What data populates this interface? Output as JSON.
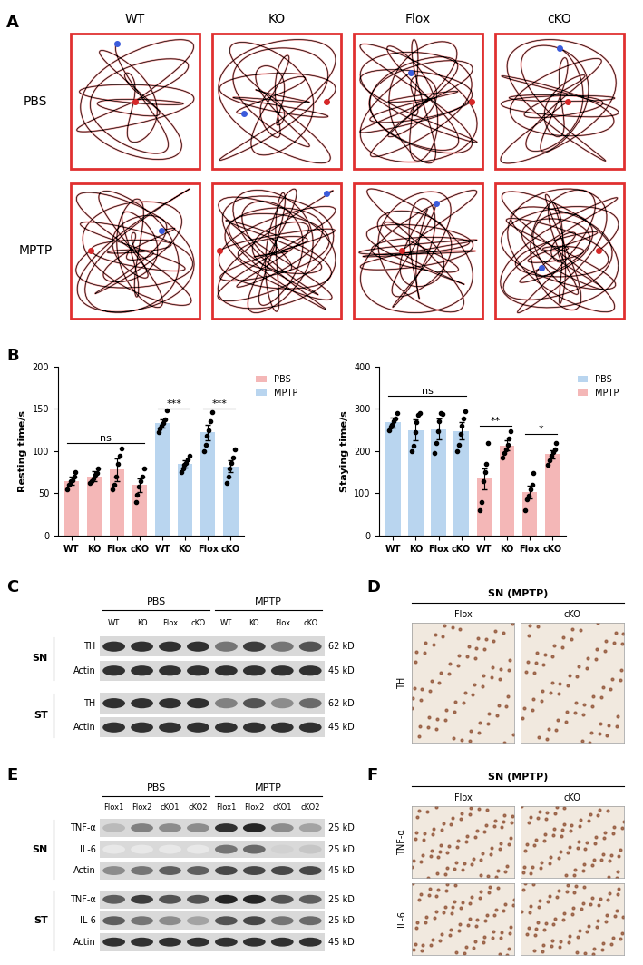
{
  "panel_labels": [
    "A",
    "B",
    "C",
    "D",
    "E",
    "F"
  ],
  "track_panel": {
    "columns": [
      "WT",
      "KO",
      "Flox",
      "cKO"
    ],
    "rows": [
      "PBS",
      "MPTP"
    ]
  },
  "chart_data": [
    {
      "type": "bar",
      "y_label": "Resting time/s",
      "categories": [
        "WT",
        "KO",
        "Flox",
        "cKO",
        "WT",
        "KO",
        "Flox",
        "cKO"
      ],
      "ylim": [
        0,
        200
      ],
      "yticks": [
        0,
        50,
        100,
        150,
        200
      ],
      "grid": false,
      "legend": "upper left",
      "series": [
        {
          "name": "PBS",
          "color": "#f4b7b7",
          "values": [
            65,
            70,
            78,
            60,
            null,
            null,
            null,
            null
          ],
          "errors": [
            5,
            6,
            13,
            8,
            null,
            null,
            null,
            null
          ],
          "points": [
            [
              55,
              60,
              64,
              66,
              70,
              75
            ],
            [
              62,
              65,
              68,
              72,
              74,
              79
            ],
            [
              55,
              60,
              70,
              85,
              95,
              103
            ],
            [
              40,
              48,
              58,
              64,
              70,
              80
            ],
            null,
            null,
            null,
            null
          ]
        },
        {
          "name": "MPTP",
          "color": "#b9d5ef",
          "values": [
            null,
            null,
            null,
            null,
            133,
            85,
            122,
            82
          ],
          "errors": [
            null,
            null,
            null,
            null,
            5,
            4,
            9,
            7
          ],
          "points": [
            null,
            null,
            null,
            null,
            [
              122,
              127,
              130,
              133,
              138,
              148
            ],
            [
              75,
              80,
              84,
              86,
              90,
              95
            ],
            [
              100,
              108,
              118,
              125,
              135,
              146
            ],
            [
              62,
              70,
              80,
              86,
              92,
              102
            ]
          ]
        }
      ],
      "annotations": [
        {
          "text": "ns",
          "from": 0,
          "to": 3,
          "y": 110
        },
        {
          "text": "***",
          "from": 4,
          "to": 5,
          "y": 150
        },
        {
          "text": "***",
          "from": 6,
          "to": 7,
          "y": 150
        }
      ]
    },
    {
      "type": "bar",
      "y_label": "Staying time/s",
      "categories": [
        "WT",
        "KO",
        "Flox",
        "cKO",
        "WT",
        "KO",
        "Flox",
        "cKO"
      ],
      "ylim": [
        0,
        400
      ],
      "yticks": [
        0,
        100,
        200,
        300,
        400
      ],
      "grid": false,
      "legend": "upper left",
      "series": [
        {
          "name": "PBS",
          "color": "#b9d5ef",
          "values": [
            268,
            250,
            252,
            248,
            null,
            null,
            null,
            null
          ],
          "errors": [
            12,
            25,
            25,
            20,
            null,
            null,
            null,
            null
          ],
          "points": [
            [
              250,
              258,
              262,
              270,
              278,
              290
            ],
            [
              200,
              212,
              245,
              268,
              285,
              290
            ],
            [
              195,
              220,
              248,
              270,
              290,
              289
            ],
            [
              200,
              215,
              240,
              260,
              278,
              295
            ],
            null,
            null,
            null,
            null
          ]
        },
        {
          "name": "MPTP",
          "color": "#f4b7b7",
          "values": [
            null,
            null,
            null,
            null,
            135,
            213,
            103,
            193
          ],
          "errors": [
            null,
            null,
            null,
            null,
            25,
            12,
            15,
            10
          ],
          "points": [
            null,
            null,
            null,
            null,
            [
              60,
              80,
              130,
              150,
              170,
              220
            ],
            [
              185,
              195,
              205,
              215,
              230,
              248
            ],
            [
              60,
              85,
              95,
              110,
              120,
              148
            ],
            [
              168,
              178,
              190,
              198,
              205,
              219
            ]
          ]
        }
      ],
      "annotations": [
        {
          "text": "ns",
          "from": 0,
          "to": 3,
          "y": 330
        },
        {
          "text": "**",
          "from": 4,
          "to": 5,
          "y": 260
        },
        {
          "text": "*",
          "from": 6,
          "to": 7,
          "y": 240
        }
      ]
    }
  ],
  "blot_C": {
    "groups": [
      {
        "name": "PBS",
        "lanes": [
          "WT",
          "KO",
          "Flox",
          "cKO"
        ]
      },
      {
        "name": "MPTP",
        "lanes": [
          "WT",
          "KO",
          "Flox",
          "cKO"
        ]
      }
    ],
    "sections": [
      {
        "region": "SN",
        "rows": [
          {
            "protein": "TH",
            "size": "62 kD",
            "intensity": [
              0.9,
              0.9,
              0.9,
              0.9,
              0.6,
              0.85,
              0.6,
              0.75
            ]
          },
          {
            "protein": "Actin",
            "size": "45 kD",
            "intensity": [
              0.9,
              0.9,
              0.9,
              0.9,
              0.9,
              0.9,
              0.9,
              0.9
            ]
          }
        ]
      },
      {
        "region": "ST",
        "rows": [
          {
            "protein": "TH",
            "size": "62 kD",
            "intensity": [
              0.9,
              0.9,
              0.9,
              0.9,
              0.55,
              0.75,
              0.5,
              0.65
            ]
          },
          {
            "protein": "Actin",
            "size": "45 kD",
            "intensity": [
              0.9,
              0.9,
              0.9,
              0.9,
              0.9,
              0.9,
              0.9,
              0.9
            ]
          }
        ]
      }
    ]
  },
  "ihc_D": {
    "title": "SN (MPTP)",
    "columns": [
      "Flox",
      "cKO"
    ],
    "rows": [
      "TH"
    ]
  },
  "blot_E": {
    "groups": [
      {
        "name": "PBS",
        "lanes": [
          "Flox1",
          "Flox2",
          "cKO1",
          "cKO2"
        ]
      },
      {
        "name": "MPTP",
        "lanes": [
          "Flox1",
          "Flox2",
          "cKO1",
          "cKO2"
        ]
      }
    ],
    "sections": [
      {
        "region": "SN",
        "rows": [
          {
            "protein": "TNF-α",
            "size": "25 kD",
            "intensity": [
              0.3,
              0.55,
              0.5,
              0.5,
              0.9,
              0.95,
              0.5,
              0.4
            ]
          },
          {
            "protein": "IL-6",
            "size": "25 kD",
            "intensity": [
              0.1,
              0.1,
              0.1,
              0.1,
              0.6,
              0.65,
              0.2,
              0.25
            ]
          },
          {
            "protein": "Actin",
            "size": "45 kD",
            "intensity": [
              0.5,
              0.6,
              0.7,
              0.7,
              0.8,
              0.8,
              0.8,
              0.8
            ]
          }
        ]
      },
      {
        "region": "ST",
        "rows": [
          {
            "protein": "TNF-α",
            "size": "25 kD",
            "intensity": [
              0.7,
              0.85,
              0.75,
              0.75,
              0.95,
              0.95,
              0.75,
              0.7
            ]
          },
          {
            "protein": "IL-6",
            "size": "25 kD",
            "intensity": [
              0.7,
              0.6,
              0.5,
              0.4,
              0.75,
              0.8,
              0.6,
              0.65
            ]
          },
          {
            "protein": "Actin",
            "size": "45 kD",
            "intensity": [
              0.9,
              0.9,
              0.9,
              0.9,
              0.9,
              0.9,
              0.9,
              0.9
            ]
          }
        ]
      }
    ]
  },
  "ihc_F": {
    "title": "SN (MPTP)",
    "columns": [
      "Flox",
      "cKO"
    ],
    "rows": [
      "TNF-α",
      "IL-6"
    ]
  }
}
